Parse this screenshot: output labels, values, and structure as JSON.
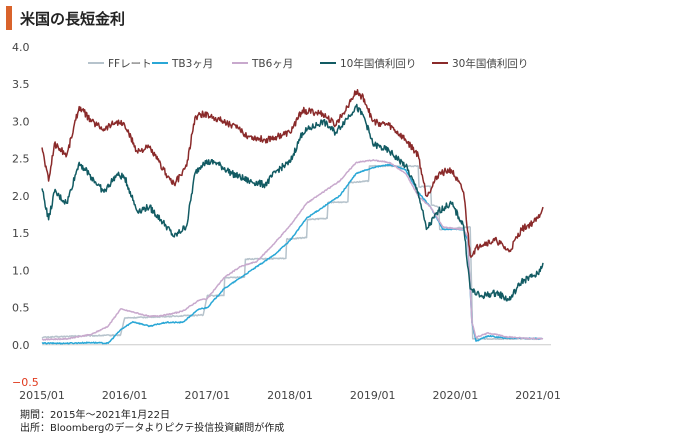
{
  "header": {
    "title": "米国の長短金利"
  },
  "footer": {
    "period": "期間：2015年～2021年1月22日",
    "source": "出所：Bloombergのデータよりピクテ投信投資顧問が作成"
  },
  "chart_data": {
    "type": "line",
    "title": "米国の長短金利",
    "xlabel": "",
    "ylabel": "",
    "ylim": [
      -0.5,
      4.0
    ],
    "yticks": [
      "4.0",
      "3.5",
      "3.0",
      "2.5",
      "2.0",
      "1.5",
      "1.0",
      "0.5",
      "0.0",
      "−0.5"
    ],
    "xticks": [
      "2015/01",
      "2016/01",
      "2017/01",
      "2018/01",
      "2019/01",
      "2020/01",
      "2021/01"
    ],
    "xlim": [
      2015.0,
      2021.06
    ],
    "legend_position": "top",
    "grid": false,
    "series": [
      {
        "name": "FFレート",
        "color": "#b6c3cc",
        "points": [
          [
            2015.0,
            0.1
          ],
          [
            2015.5,
            0.12
          ],
          [
            2015.95,
            0.13
          ],
          [
            2016.0,
            0.36
          ],
          [
            2016.5,
            0.38
          ],
          [
            2016.95,
            0.4
          ],
          [
            2017.0,
            0.66
          ],
          [
            2017.2,
            0.66
          ],
          [
            2017.21,
            0.9
          ],
          [
            2017.45,
            0.91
          ],
          [
            2017.46,
            1.15
          ],
          [
            2017.95,
            1.16
          ],
          [
            2017.96,
            1.42
          ],
          [
            2018.2,
            1.44
          ],
          [
            2018.21,
            1.68
          ],
          [
            2018.45,
            1.7
          ],
          [
            2018.46,
            1.91
          ],
          [
            2018.7,
            1.92
          ],
          [
            2018.71,
            2.18
          ],
          [
            2018.95,
            2.2
          ],
          [
            2018.96,
            2.4
          ],
          [
            2019.55,
            2.4
          ],
          [
            2019.56,
            2.12
          ],
          [
            2019.7,
            2.13
          ],
          [
            2019.71,
            1.88
          ],
          [
            2019.8,
            1.85
          ],
          [
            2019.81,
            1.55
          ],
          [
            2020.18,
            1.58
          ],
          [
            2020.19,
            1.05
          ],
          [
            2020.21,
            0.08
          ],
          [
            2020.5,
            0.08
          ],
          [
            2021.06,
            0.08
          ]
        ]
      },
      {
        "name": "TB3ヶ月",
        "color": "#2aa7d6",
        "points": [
          [
            2015.0,
            0.02
          ],
          [
            2015.3,
            0.02
          ],
          [
            2015.6,
            0.03
          ],
          [
            2015.8,
            0.02
          ],
          [
            2015.95,
            0.2
          ],
          [
            2016.1,
            0.31
          ],
          [
            2016.3,
            0.25
          ],
          [
            2016.5,
            0.3
          ],
          [
            2016.7,
            0.3
          ],
          [
            2016.9,
            0.48
          ],
          [
            2017.0,
            0.5
          ],
          [
            2017.2,
            0.75
          ],
          [
            2017.4,
            0.9
          ],
          [
            2017.6,
            1.05
          ],
          [
            2017.8,
            1.2
          ],
          [
            2018.0,
            1.4
          ],
          [
            2018.2,
            1.7
          ],
          [
            2018.4,
            1.85
          ],
          [
            2018.6,
            2.0
          ],
          [
            2018.8,
            2.3
          ],
          [
            2019.0,
            2.38
          ],
          [
            2019.2,
            2.42
          ],
          [
            2019.4,
            2.35
          ],
          [
            2019.55,
            2.05
          ],
          [
            2019.7,
            1.85
          ],
          [
            2019.85,
            1.55
          ],
          [
            2020.1,
            1.55
          ],
          [
            2020.15,
            1.4
          ],
          [
            2020.2,
            0.3
          ],
          [
            2020.25,
            0.05
          ],
          [
            2020.4,
            0.12
          ],
          [
            2020.6,
            0.09
          ],
          [
            2020.8,
            0.09
          ],
          [
            2021.06,
            0.08
          ]
        ]
      },
      {
        "name": "TB6ヶ月",
        "color": "#c8a9cd",
        "points": [
          [
            2015.0,
            0.07
          ],
          [
            2015.3,
            0.08
          ],
          [
            2015.6,
            0.14
          ],
          [
            2015.8,
            0.25
          ],
          [
            2015.95,
            0.48
          ],
          [
            2016.1,
            0.44
          ],
          [
            2016.3,
            0.38
          ],
          [
            2016.5,
            0.4
          ],
          [
            2016.7,
            0.45
          ],
          [
            2016.9,
            0.6
          ],
          [
            2017.0,
            0.62
          ],
          [
            2017.2,
            0.9
          ],
          [
            2017.4,
            1.05
          ],
          [
            2017.6,
            1.12
          ],
          [
            2017.8,
            1.35
          ],
          [
            2018.0,
            1.6
          ],
          [
            2018.2,
            1.9
          ],
          [
            2018.4,
            2.05
          ],
          [
            2018.6,
            2.2
          ],
          [
            2018.8,
            2.45
          ],
          [
            2019.0,
            2.48
          ],
          [
            2019.2,
            2.45
          ],
          [
            2019.4,
            2.3
          ],
          [
            2019.55,
            2.0
          ],
          [
            2019.7,
            1.85
          ],
          [
            2019.85,
            1.58
          ],
          [
            2020.1,
            1.55
          ],
          [
            2020.15,
            1.45
          ],
          [
            2020.2,
            0.3
          ],
          [
            2020.25,
            0.1
          ],
          [
            2020.4,
            0.16
          ],
          [
            2020.6,
            0.11
          ],
          [
            2020.8,
            0.09
          ],
          [
            2021.06,
            0.08
          ]
        ]
      },
      {
        "name": "10年国債利回り",
        "color": "#125b63",
        "points": [
          [
            2015.0,
            2.1
          ],
          [
            2015.08,
            1.68
          ],
          [
            2015.15,
            2.05
          ],
          [
            2015.3,
            1.9
          ],
          [
            2015.45,
            2.45
          ],
          [
            2015.6,
            2.25
          ],
          [
            2015.75,
            2.05
          ],
          [
            2015.9,
            2.28
          ],
          [
            2016.0,
            2.25
          ],
          [
            2016.15,
            1.8
          ],
          [
            2016.3,
            1.85
          ],
          [
            2016.5,
            1.6
          ],
          [
            2016.6,
            1.45
          ],
          [
            2016.75,
            1.6
          ],
          [
            2016.85,
            2.3
          ],
          [
            2016.95,
            2.45
          ],
          [
            2017.1,
            2.45
          ],
          [
            2017.3,
            2.3
          ],
          [
            2017.5,
            2.2
          ],
          [
            2017.7,
            2.15
          ],
          [
            2017.85,
            2.35
          ],
          [
            2018.0,
            2.45
          ],
          [
            2018.15,
            2.85
          ],
          [
            2018.4,
            3.0
          ],
          [
            2018.55,
            2.85
          ],
          [
            2018.8,
            3.2
          ],
          [
            2018.9,
            3.05
          ],
          [
            2019.0,
            2.7
          ],
          [
            2019.2,
            2.6
          ],
          [
            2019.4,
            2.4
          ],
          [
            2019.55,
            2.05
          ],
          [
            2019.65,
            1.55
          ],
          [
            2019.8,
            1.8
          ],
          [
            2019.95,
            1.9
          ],
          [
            2020.1,
            1.6
          ],
          [
            2020.18,
            0.75
          ],
          [
            2020.3,
            0.65
          ],
          [
            2020.5,
            0.7
          ],
          [
            2020.65,
            0.6
          ],
          [
            2020.8,
            0.85
          ],
          [
            2020.95,
            0.93
          ],
          [
            2021.0,
            0.95
          ],
          [
            2021.06,
            1.1
          ]
        ]
      },
      {
        "name": "30年国債利回り",
        "color": "#8a2a2a",
        "points": [
          [
            2015.0,
            2.65
          ],
          [
            2015.08,
            2.2
          ],
          [
            2015.15,
            2.7
          ],
          [
            2015.3,
            2.55
          ],
          [
            2015.45,
            3.2
          ],
          [
            2015.6,
            3.0
          ],
          [
            2015.75,
            2.9
          ],
          [
            2015.9,
            3.0
          ],
          [
            2016.0,
            2.95
          ],
          [
            2016.15,
            2.6
          ],
          [
            2016.3,
            2.65
          ],
          [
            2016.5,
            2.3
          ],
          [
            2016.6,
            2.15
          ],
          [
            2016.75,
            2.4
          ],
          [
            2016.85,
            3.05
          ],
          [
            2016.95,
            3.1
          ],
          [
            2017.1,
            3.05
          ],
          [
            2017.3,
            2.95
          ],
          [
            2017.5,
            2.8
          ],
          [
            2017.7,
            2.75
          ],
          [
            2017.85,
            2.8
          ],
          [
            2018.0,
            2.85
          ],
          [
            2018.15,
            3.15
          ],
          [
            2018.4,
            3.1
          ],
          [
            2018.55,
            2.95
          ],
          [
            2018.8,
            3.4
          ],
          [
            2018.9,
            3.3
          ],
          [
            2019.0,
            3.0
          ],
          [
            2019.2,
            2.95
          ],
          [
            2019.4,
            2.75
          ],
          [
            2019.55,
            2.55
          ],
          [
            2019.65,
            2.0
          ],
          [
            2019.8,
            2.3
          ],
          [
            2019.95,
            2.35
          ],
          [
            2020.1,
            2.05
          ],
          [
            2020.18,
            1.2
          ],
          [
            2020.3,
            1.35
          ],
          [
            2020.5,
            1.4
          ],
          [
            2020.65,
            1.25
          ],
          [
            2020.8,
            1.55
          ],
          [
            2020.95,
            1.65
          ],
          [
            2021.0,
            1.7
          ],
          [
            2021.06,
            1.85
          ]
        ]
      }
    ]
  }
}
